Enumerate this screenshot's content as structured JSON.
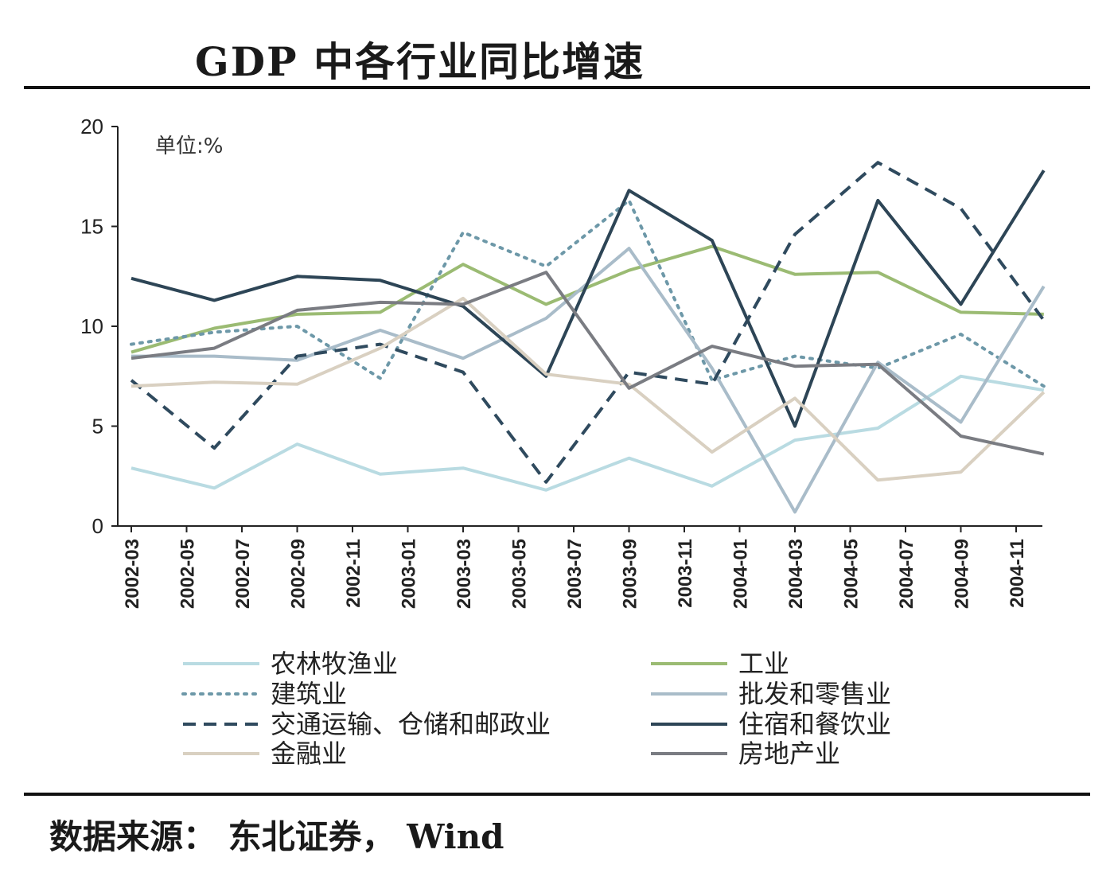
{
  "title": "GDP 中各行业同比增速",
  "source": "数据来源： 东北证券， Wind",
  "chart_data": {
    "type": "line",
    "unit_label": "单位:%",
    "ylim": [
      0,
      20
    ],
    "yticks": [
      "0",
      "5",
      "10",
      "15",
      "20"
    ],
    "xticks": [
      "2002-03",
      "2002-05",
      "2002-07",
      "2002-09",
      "2002-11",
      "2003-01",
      "2003-03",
      "2003-05",
      "2003-07",
      "2003-09",
      "2003-11",
      "2004-01",
      "2004-03",
      "2004-05",
      "2004-07",
      "2004-09",
      "2004-11"
    ],
    "x": [
      "2002-03",
      "2002-06",
      "2002-09",
      "2002-12",
      "2003-03",
      "2003-06",
      "2003-09",
      "2003-12",
      "2004-03",
      "2004-06",
      "2004-09",
      "2004-12"
    ],
    "series": [
      {
        "name": "农林牧渔业",
        "color": "#b9dbe2",
        "style": "solid",
        "values": [
          2.9,
          1.9,
          4.1,
          2.6,
          2.9,
          1.8,
          3.4,
          2.0,
          4.3,
          4.9,
          7.5,
          6.8
        ]
      },
      {
        "name": "工业",
        "color": "#9bbb73",
        "style": "solid",
        "values": [
          8.7,
          9.9,
          10.6,
          10.7,
          13.1,
          11.1,
          12.8,
          14.0,
          12.6,
          12.7,
          10.7,
          10.6
        ]
      },
      {
        "name": "建筑业",
        "color": "#6d98a8",
        "style": "dotted",
        "values": [
          9.1,
          9.7,
          10.0,
          7.4,
          14.7,
          13.0,
          16.3,
          7.3,
          8.5,
          7.9,
          9.6,
          7.0
        ]
      },
      {
        "name": "批发和零售业",
        "color": "#a9bcc9",
        "style": "solid",
        "values": [
          8.5,
          8.5,
          8.3,
          9.8,
          8.4,
          10.4,
          13.9,
          7.9,
          0.7,
          8.2,
          5.2,
          12.0
        ]
      },
      {
        "name": "交通运输、仓储和邮政业",
        "color": "#2f4a5e",
        "style": "dashed",
        "values": [
          7.3,
          3.9,
          8.5,
          9.1,
          7.7,
          2.2,
          7.7,
          7.1,
          14.6,
          18.2,
          15.9,
          10.3
        ]
      },
      {
        "name": "住宿和餐饮业",
        "color": "#2d4556",
        "style": "solid",
        "values": [
          12.4,
          11.3,
          12.5,
          12.3,
          11.0,
          7.5,
          16.8,
          14.3,
          5.0,
          16.3,
          11.1,
          17.8
        ]
      },
      {
        "name": "金融业",
        "color": "#d9d0c1",
        "style": "solid",
        "values": [
          7.0,
          7.2,
          7.1,
          8.9,
          11.4,
          7.6,
          7.1,
          3.7,
          6.4,
          2.3,
          2.7,
          6.7
        ]
      },
      {
        "name": "房地产业",
        "color": "#7a7c82",
        "style": "solid",
        "values": [
          8.4,
          8.9,
          10.8,
          11.2,
          11.1,
          12.7,
          6.9,
          9.0,
          8.0,
          8.1,
          4.5,
          3.6
        ]
      }
    ],
    "legend": {
      "left": [
        "农林牧渔业",
        "建筑业",
        "交通运输、仓储和邮政业",
        "金融业"
      ],
      "right": [
        "工业",
        "批发和零售业",
        "住宿和餐饮业",
        "房地产业"
      ]
    }
  }
}
